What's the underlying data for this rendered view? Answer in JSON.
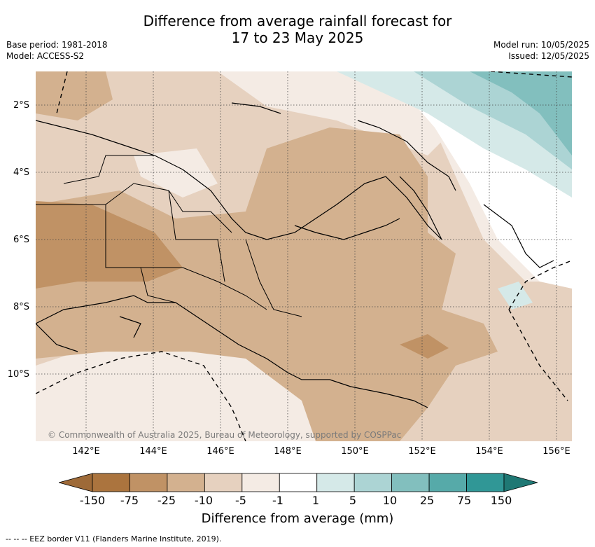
{
  "title": {
    "line1": "Difference from average rainfall forecast for",
    "line2": "17 to 23 May 2025"
  },
  "meta": {
    "base_period": "Base period: 1981-2018",
    "model": "Model: ACCESS-S2",
    "model_run": "Model run: 10/05/2025",
    "issued": "Issued: 12/05/2025"
  },
  "map": {
    "lat_labels": [
      "2°S",
      "4°S",
      "6°S",
      "8°S",
      "10°S"
    ],
    "lon_labels": [
      "142°E",
      "144°E",
      "146°E",
      "148°E",
      "150°E",
      "152°E",
      "154°E",
      "156°E"
    ],
    "copyright": "© Commonwealth of Australia 2025, Bureau of Meteorology, supported by COSPPac"
  },
  "colorbar": {
    "ticks": [
      "-150",
      "-75",
      "-25",
      "-10",
      "-5",
      "-1",
      "1",
      "5",
      "10",
      "25",
      "75",
      "150"
    ],
    "colors": [
      "#9e6a38",
      "#ab743e",
      "#c09265",
      "#d3b18f",
      "#e6d1bf",
      "#f4ebe4",
      "#ffffff",
      "#d5e9e8",
      "#acd4d4",
      "#82bfbe",
      "#56aaa9",
      "#309796",
      "#1f7874"
    ],
    "label": "Difference from average (mm)"
  },
  "footnote": "--  --  -- EEZ border V11 (Flanders Marine Institute, 2019)."
}
